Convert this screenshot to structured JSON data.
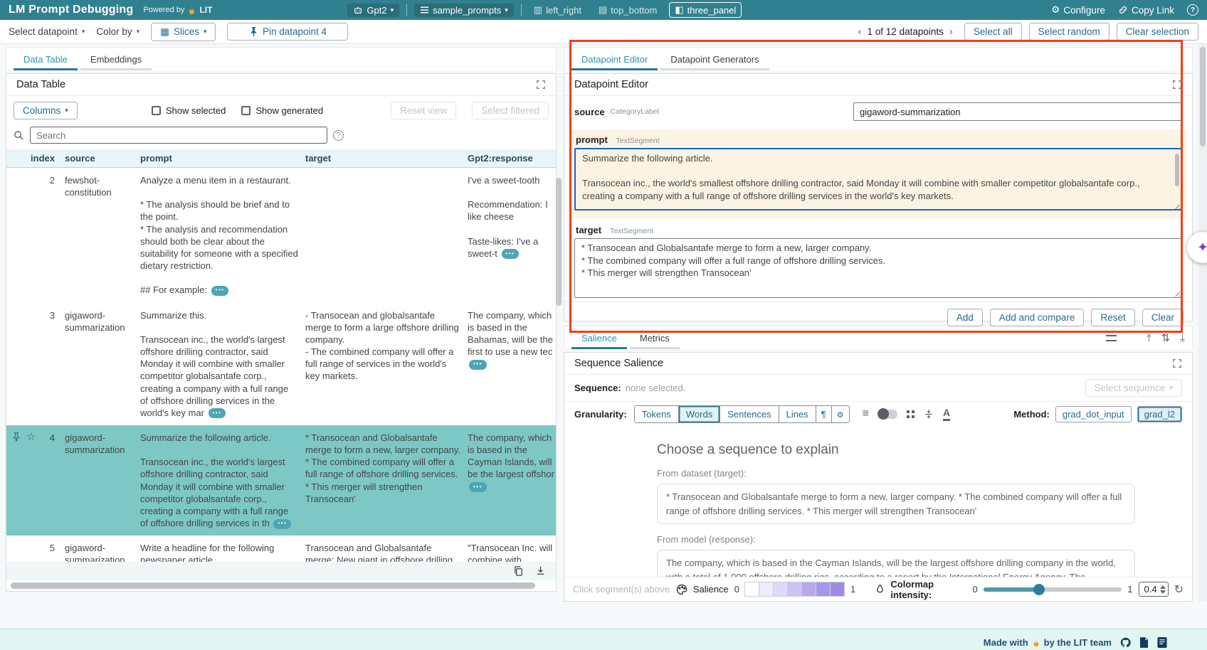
{
  "colors": {
    "header_teal": "#31808f",
    "accent_teal": "#2b7a8b",
    "selection_teal": "#7dc8c4",
    "link_blue": "#266a91",
    "highlight_red": "#f63d16",
    "edited_field_bg": "#fdf3e2"
  },
  "header": {
    "title": "LM Prompt Debugging",
    "powered_by": "Powered by",
    "brand": "LIT",
    "model": "Gpt2",
    "dataset": "sample_prompts",
    "layout_left_right": "left_right",
    "layout_top_bottom": "top_bottom",
    "layout_three_panel": "three_panel",
    "configure": "Configure",
    "copy_link": "Copy Link",
    "help": "?"
  },
  "toolbar": {
    "select_datapoint": "Select datapoint",
    "color_by": "Color by",
    "slices": "Slices",
    "pin_button": "Pin datapoint 4",
    "prev": "‹",
    "next": "›",
    "pagination": "1 of 12 datapoints",
    "select_all": "Select all",
    "select_random": "Select random",
    "clear_selection": "Clear selection"
  },
  "left_panel": {
    "tabs": [
      "Data Table",
      "Embeddings"
    ],
    "module_title": "Data Table",
    "columns_button": "Columns",
    "show_selected": "Show selected",
    "show_generated": "Show generated",
    "reset_view": "Reset view",
    "select_filtered": "Select filtered",
    "search_placeholder": "Search",
    "table": {
      "more_label": "•••",
      "headers": [
        "index",
        "source",
        "prompt",
        "target",
        "Gpt2:response"
      ],
      "rows": [
        {
          "index": "2",
          "source": "fewshot-constitution",
          "prompt": "Analyze a menu item in a restaurant.\n\n* The analysis should be brief and to the point.\n* The analysis and recommendation should both be clear about the suitability for someone with a specified dietary restriction.\n\n## For example: ",
          "prompt_more": true,
          "target": "",
          "target_more": false,
          "response": "I've a sweet-tooth\n\nRecommendation: I like cheese\n\nTaste-likes: I've a sweet-t ",
          "response_more": true,
          "selected": false,
          "pinned": false
        },
        {
          "index": "3",
          "source": "gigaword-summarization",
          "prompt": "Summarize this.\n\nTransocean inc., the world's largest offshore drilling contractor, said Monday it will combine with smaller competitor globalsantafe corp., creating a company with a full range of offshore drilling services in the world's key mar ",
          "prompt_more": true,
          "target": "- Transocean and globalsantafe merge to form a large offshore drilling company.\n- The combined company will offer a full range of services in the world's key markets.",
          "target_more": false,
          "response": "The company, which is based in the Bahamas, will be the first to use a new tec ",
          "response_more": true,
          "selected": false,
          "pinned": false
        },
        {
          "index": "4",
          "source": "gigaword-summarization",
          "prompt": "Summarize the following article.\n\nTransocean inc., the world's largest offshore drilling contractor, said Monday it will combine with smaller competitor globalsantafe corp., creating a company with a full range of offshore drilling services in th ",
          "prompt_more": true,
          "target": "* Transocean and Globalsantafe merge to form a new, larger company.\n* The combined company will offer a full range of offshore drilling services.\n* This merger will strengthen Transocean'",
          "target_more": false,
          "response": "The company, which is based in the Cayman Islands, will be the largest offshor\n",
          "response_more": true,
          "selected": true,
          "pinned": true
        },
        {
          "index": "5",
          "source": "gigaword-summarization",
          "prompt": "Write a headline for the following newspaper article.\n\nTransocean inc., the world's largest offshore drilling contractor, said Monday it will combine with smaller",
          "prompt_more": false,
          "target": "Transocean and Globalsantafe merge: New giant in offshore drilling",
          "target_more": false,
          "response": "\"Transocean Inc. will combine with Globalsantafe Corp. to create a company wit ",
          "response_more": true,
          "selected": false,
          "pinned": false
        }
      ]
    }
  },
  "editor": {
    "tabs": [
      "Datapoint Editor",
      "Datapoint Generators"
    ],
    "module_title": "Datapoint Editor",
    "source_label": "source",
    "source_type": "CategoryLabel",
    "source_value": "gigaword-summarization",
    "prompt_label": "prompt",
    "prompt_type": "TextSegment",
    "prompt_value": "Summarize the following article.\n\nTransocean inc., the world's smallest offshore drilling contractor, said Monday it will combine with smaller competitor globalsantafe corp., creating a company with a full range of offshore drilling services in the world's key markets.",
    "target_label": "target",
    "target_type": "TextSegment",
    "target_value": "* Transocean and Globalsantafe merge to form a new, larger company.\n* The combined company will offer a full range of offshore drilling services.\n* This merger will strengthen Transocean'",
    "add": "Add",
    "add_and_compare": "Add and compare",
    "reset": "Reset",
    "clear": "Clear"
  },
  "salience": {
    "tabs": [
      "Salience",
      "Metrics"
    ],
    "module_title": "Sequence Salience",
    "sequence_label": "Sequence:",
    "sequence_value": "none selected.",
    "select_sequence": "Select sequence",
    "granularity_label": "Granularity:",
    "granularity_options": [
      "Tokens",
      "Words",
      "Sentences",
      "Lines",
      "¶"
    ],
    "granularity_active": "Words",
    "method_label": "Method:",
    "method_options": [
      "grad_dot_input",
      "grad_l2"
    ],
    "method_active": "grad_l2",
    "choose_heading": "Choose a sequence to explain",
    "from_dataset_label": "From dataset (target):",
    "from_dataset_text": "* Transocean and Globalsantafe merge to form a new, larger company. * The combined company will offer a full range of offshore drilling services. * This merger will strengthen Transocean'",
    "from_model_label": "From model (response):",
    "from_model_text": "The company, which is based in the Cayman Islands, will be the largest offshore drilling company in the world, with a total of 1,000 offshore drilling rigs, according to a report by the International Energy Agency. The",
    "footer": {
      "hint": "Click segment(s) above t…",
      "salience_label": "Salience",
      "scale_min": "0",
      "scale_max": "1",
      "swatches": [
        "#ffffff",
        "#eeebfb",
        "#ded9f7",
        "#cdc3f1",
        "#b7a9eb",
        "#a797e5",
        "#9f8ce2"
      ],
      "colormap_label": "Colormap intensity:",
      "slider_min": "0",
      "slider_max": "1",
      "intensity_value": "0.4"
    }
  },
  "footer": {
    "made_with": "Made with",
    "team": "by the LIT team"
  }
}
